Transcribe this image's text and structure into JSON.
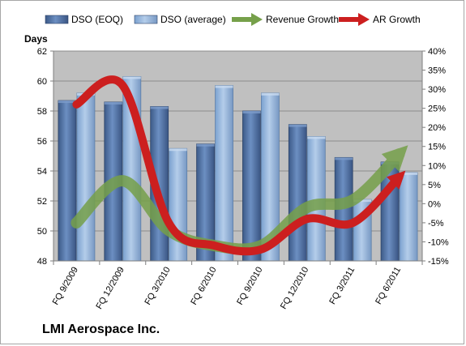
{
  "company": "LMI Aerospace Inc.",
  "colors": {
    "plot_bg": "#c0c0c0",
    "eoq": "#4f6fa0",
    "avg": "#8eb2db",
    "revenue": "#76a04a",
    "ar": "#cc1f1f"
  },
  "chart_data": {
    "type": "bar",
    "y_left_label": "Days",
    "categories": [
      "FQ 9/2009",
      "FQ 12/2009",
      "FQ 3/2010",
      "FQ 6/2010",
      "FQ 9/2010",
      "FQ 12/2010",
      "FQ 3/2011",
      "FQ 6/2011"
    ],
    "ylim_left": [
      48,
      62
    ],
    "yticks_left": [
      "48",
      "50",
      "52",
      "54",
      "56",
      "58",
      "60",
      "62"
    ],
    "ylim_right": [
      -15,
      40
    ],
    "yticks_right": [
      "-15%",
      "-10%",
      "-5%",
      "0%",
      "5%",
      "10%",
      "15%",
      "20%",
      "25%",
      "30%",
      "35%",
      "40%"
    ],
    "grid": true,
    "legend_position": "top",
    "series": [
      {
        "name": "DSO (EOQ)",
        "type": "bar",
        "axis": "left",
        "values": [
          58.7,
          58.6,
          58.3,
          55.8,
          58.0,
          57.1,
          54.9,
          54.6
        ]
      },
      {
        "name": "DSO (average)",
        "type": "bar",
        "axis": "left",
        "values": [
          59.2,
          60.3,
          55.5,
          59.7,
          59.2,
          56.3,
          52.1,
          53.9
        ]
      },
      {
        "name": "Revenue Growth",
        "type": "line",
        "axis": "right",
        "values": [
          -5,
          6,
          -7,
          -11,
          -11,
          -1,
          1,
          13
        ]
      },
      {
        "name": "AR Growth",
        "type": "line",
        "axis": "right",
        "values": [
          26,
          31,
          -5,
          -11,
          -12,
          -4,
          -5,
          7
        ]
      }
    ]
  }
}
